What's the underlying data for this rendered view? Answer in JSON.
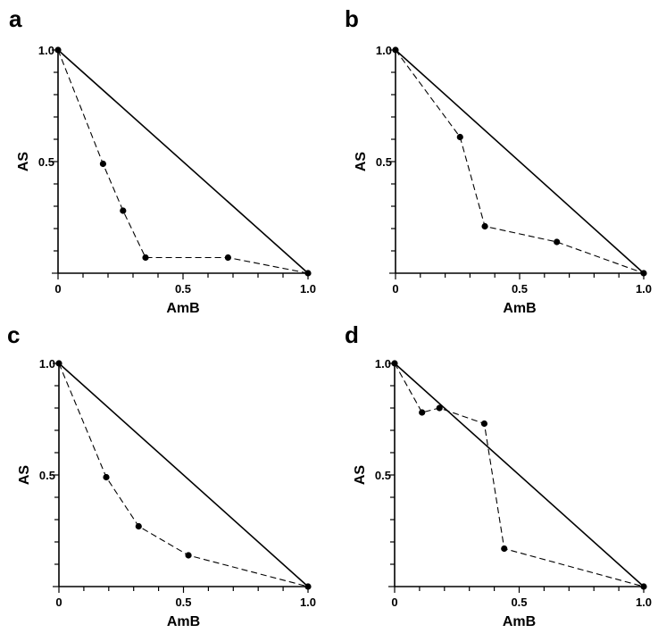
{
  "chart_data": [
    {
      "panel": "a",
      "type": "scatter",
      "xlabel": "AmB",
      "ylabel": "AS",
      "xlim": [
        0,
        1
      ],
      "ylim": [
        0,
        1
      ],
      "x_tick_labels": [
        "0",
        "0.5",
        "1.0"
      ],
      "y_tick_labels": [
        "0.5",
        "1.0"
      ],
      "reference_line": {
        "x": [
          0,
          1
        ],
        "y": [
          1,
          0
        ],
        "style": "solid"
      },
      "series": [
        {
          "style": "dashed",
          "marker": "circle",
          "points": [
            {
              "x": 0.0,
              "y": 1.0
            },
            {
              "x": 0.18,
              "y": 0.49
            },
            {
              "x": 0.26,
              "y": 0.28
            },
            {
              "x": 0.35,
              "y": 0.07
            },
            {
              "x": 0.68,
              "y": 0.07
            },
            {
              "x": 1.0,
              "y": 0.0
            }
          ]
        }
      ]
    },
    {
      "panel": "b",
      "type": "scatter",
      "xlabel": "AmB",
      "ylabel": "AS",
      "xlim": [
        0,
        1
      ],
      "ylim": [
        0,
        1
      ],
      "x_tick_labels": [
        "0",
        "0.5",
        "1.0"
      ],
      "y_tick_labels": [
        "0.5",
        "1.0"
      ],
      "reference_line": {
        "x": [
          0,
          1
        ],
        "y": [
          1,
          0
        ],
        "style": "solid"
      },
      "series": [
        {
          "style": "dashed",
          "marker": "circle",
          "points": [
            {
              "x": 0.0,
              "y": 1.0
            },
            {
              "x": 0.26,
              "y": 0.61
            },
            {
              "x": 0.36,
              "y": 0.21
            },
            {
              "x": 0.65,
              "y": 0.14
            },
            {
              "x": 1.0,
              "y": 0.0
            }
          ]
        }
      ]
    },
    {
      "panel": "c",
      "type": "scatter",
      "xlabel": "AmB",
      "ylabel": "AS",
      "xlim": [
        0,
        1
      ],
      "ylim": [
        0,
        1
      ],
      "x_tick_labels": [
        "0",
        "0.5",
        "1.0"
      ],
      "y_tick_labels": [
        "0.5",
        "1.0"
      ],
      "reference_line": {
        "x": [
          0,
          1
        ],
        "y": [
          1,
          0
        ],
        "style": "solid"
      },
      "series": [
        {
          "style": "dashed",
          "marker": "circle",
          "points": [
            {
              "x": 0.0,
              "y": 1.0
            },
            {
              "x": 0.19,
              "y": 0.49
            },
            {
              "x": 0.32,
              "y": 0.27
            },
            {
              "x": 0.52,
              "y": 0.14
            },
            {
              "x": 1.0,
              "y": 0.0
            }
          ]
        }
      ]
    },
    {
      "panel": "d",
      "type": "scatter",
      "xlabel": "AmB",
      "ylabel": "AS",
      "xlim": [
        0,
        1
      ],
      "ylim": [
        0,
        1
      ],
      "x_tick_labels": [
        "0",
        "0.5",
        "1.0"
      ],
      "y_tick_labels": [
        "0.5",
        "1.0"
      ],
      "reference_line": {
        "x": [
          0,
          1
        ],
        "y": [
          1,
          0
        ],
        "style": "solid"
      },
      "series": [
        {
          "style": "dashed",
          "marker": "circle",
          "points": [
            {
              "x": 0.0,
              "y": 1.0
            },
            {
              "x": 0.11,
              "y": 0.78
            },
            {
              "x": 0.18,
              "y": 0.8
            },
            {
              "x": 0.36,
              "y": 0.73
            },
            {
              "x": 0.44,
              "y": 0.17
            },
            {
              "x": 1.0,
              "y": 0.0
            }
          ]
        }
      ]
    }
  ]
}
